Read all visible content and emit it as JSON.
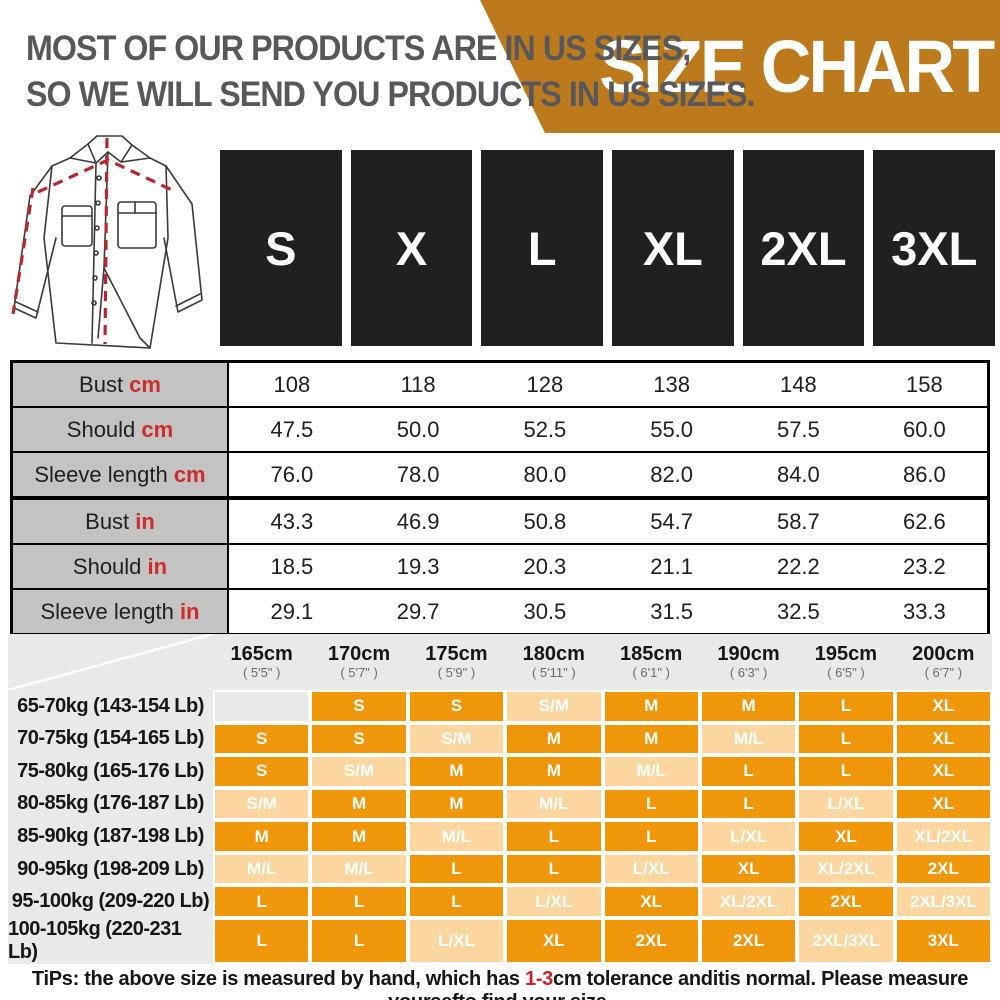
{
  "header": {
    "intro_line1": "MOST OF OUR PRODUCTS ARE IN US SIZES,",
    "intro_line2": "SO WE WILL SEND YOU PRODUCTS IN US SIZES.",
    "banner_title": "SIZE CHART",
    "banner_color": "#bd7a1c",
    "intro_color": "#57585c"
  },
  "size_boxes": [
    "S",
    "X",
    "L",
    "XL",
    "2XL",
    "3XL"
  ],
  "measurement_tables": [
    {
      "unit": "cm",
      "rows": [
        {
          "label": "Bust",
          "unit": "cm",
          "values": [
            "108",
            "118",
            "128",
            "138",
            "148",
            "158"
          ]
        },
        {
          "label": "Should",
          "unit": "cm",
          "values": [
            "47.5",
            "50.0",
            "52.5",
            "55.0",
            "57.5",
            "60.0"
          ]
        },
        {
          "label": "Sleeve length",
          "unit": "cm",
          "values": [
            "76.0",
            "78.0",
            "80.0",
            "82.0",
            "84.0",
            "86.0"
          ]
        }
      ]
    },
    {
      "unit": "in",
      "rows": [
        {
          "label": "Bust",
          "unit": "in",
          "values": [
            "43.3",
            "46.9",
            "50.8",
            "54.7",
            "58.7",
            "62.6"
          ]
        },
        {
          "label": "Should",
          "unit": "in",
          "values": [
            "18.5",
            "19.3",
            "20.3",
            "21.1",
            "22.2",
            "23.2"
          ]
        },
        {
          "label": "Sleeve length",
          "unit": "in",
          "values": [
            "29.1",
            "29.7",
            "30.5",
            "31.5",
            "32.5",
            "33.3"
          ]
        }
      ]
    }
  ],
  "fit_matrix": {
    "height_columns": [
      {
        "cm": "165cm",
        "ft": "( 5'5\" )"
      },
      {
        "cm": "170cm",
        "ft": "( 5'7\" )"
      },
      {
        "cm": "175cm",
        "ft": "( 5'9\" )"
      },
      {
        "cm": "180cm",
        "ft": "( 5'11\" )"
      },
      {
        "cm": "185cm",
        "ft": "( 6'1\" )"
      },
      {
        "cm": "190cm",
        "ft": "( 6'3\" )"
      },
      {
        "cm": "195cm",
        "ft": "( 6'5\" )"
      },
      {
        "cm": "200cm",
        "ft": "( 6'7\" )"
      }
    ],
    "rows": [
      {
        "weight": "65-70kg (143-154 Lb)",
        "sizes": [
          "",
          "S",
          "S",
          "S/M",
          "M",
          "M",
          "L",
          "XL"
        ]
      },
      {
        "weight": "70-75kg (154-165 Lb)",
        "sizes": [
          "S",
          "S",
          "S/M",
          "M",
          "M",
          "M/L",
          "L",
          "XL"
        ]
      },
      {
        "weight": "75-80kg (165-176 Lb)",
        "sizes": [
          "S",
          "S/M",
          "M",
          "M",
          "M/L",
          "L",
          "L",
          "XL"
        ]
      },
      {
        "weight": "80-85kg (176-187 Lb)",
        "sizes": [
          "S/M",
          "M",
          "M",
          "M/L",
          "L",
          "L",
          "L/XL",
          "XL"
        ]
      },
      {
        "weight": "85-90kg (187-198 Lb)",
        "sizes": [
          "M",
          "M",
          "M/L",
          "L",
          "L",
          "L/XL",
          "XL",
          "XL/2XL"
        ]
      },
      {
        "weight": "90-95kg (198-209 Lb)",
        "sizes": [
          "M/L",
          "M/L",
          "L",
          "L",
          "L/XL",
          "XL",
          "XL/2XL",
          "2XL"
        ]
      },
      {
        "weight": "95-100kg (209-220 Lb)",
        "sizes": [
          "L",
          "L",
          "L",
          "L/XL",
          "XL",
          "XL/2XL",
          "2XL",
          "2XL/3XL"
        ]
      },
      {
        "weight": "100-105kg (220-231 Lb)",
        "sizes": [
          "L",
          "L",
          "L/XL",
          "XL",
          "2XL",
          "2XL",
          "2XL/3XL",
          "3XL"
        ]
      }
    ],
    "colors": {
      "solid": "#ef9609",
      "split": "#fbd69f",
      "empty": "#e9e9e9"
    }
  },
  "tips": {
    "prefix": "TiPs: the above size is measured by hand, which has ",
    "highlight": "1-3",
    "suffix": "cm tolerance anditis normal. Please measure yoursefto find your size.",
    "highlight_color": "#cc2127"
  }
}
